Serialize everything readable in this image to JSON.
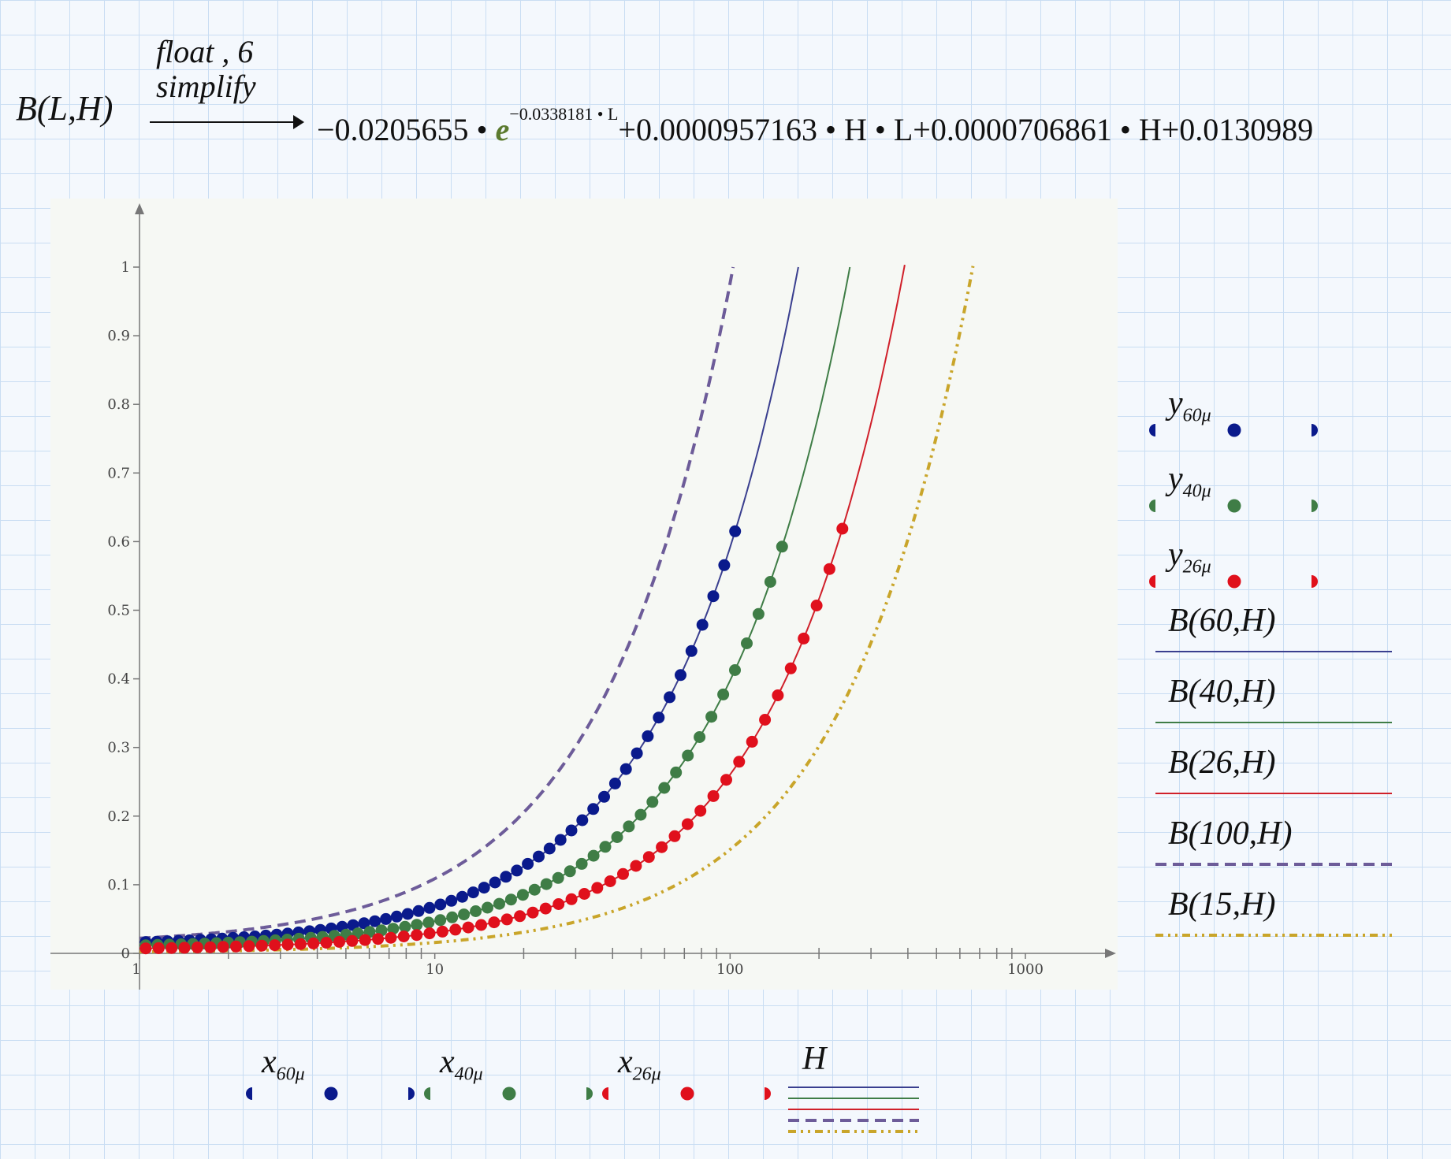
{
  "equation": {
    "lhs": "B(L,H)",
    "directive_1": "float , 6",
    "directive_2": "simplify",
    "rhs_parts": {
      "c1": "−0.0205655 • ",
      "e": "e",
      "exp": "−0.0338181 • L",
      "rest": "+0.0000957163 • H • L+0.0000706861 • H+0.0130989"
    }
  },
  "chart_data": {
    "type": "scatter",
    "title": "",
    "x_scale": "log",
    "xlim": [
      0.7,
      2000
    ],
    "ylim": [
      -0.1,
      1.1
    ],
    "x_ticks": [
      1,
      10,
      100,
      1000
    ],
    "x_tick_labels": [
      "1",
      "10",
      "100",
      "1000"
    ],
    "y_ticks": [
      0,
      0.1,
      0.2,
      0.3,
      0.4,
      0.5,
      0.6,
      0.7,
      0.8,
      0.9,
      1
    ],
    "y_tick_labels": [
      "0",
      "0.1",
      "0.2",
      "0.3",
      "0.4",
      "0.5",
      "0.6",
      "0.7",
      "0.8",
      "0.9",
      "1"
    ],
    "formula": {
      "a": -0.0205655,
      "k": -0.0338181,
      "b": 9.57163e-05,
      "c": 7.06861e-05,
      "d": 0.0130989
    },
    "scatter_series": [
      {
        "label": "y60μ",
        "x_label": "x60μ",
        "L": 60,
        "color": "#0a1a8c",
        "h_range": [
          1.05,
          104
        ],
        "n": 55
      },
      {
        "label": "y40μ",
        "x_label": "x40μ",
        "L": 40,
        "color": "#3f7d46",
        "h_range": [
          1.05,
          150
        ],
        "n": 55
      },
      {
        "label": "y26μ",
        "x_label": "x26μ",
        "L": 26,
        "color": "#e0101c",
        "h_range": [
          1.05,
          240
        ],
        "n": 55
      }
    ],
    "line_series": [
      {
        "label": "B(60,H)",
        "L": 60,
        "color": "#3a3f8f",
        "dash": "",
        "width": 2
      },
      {
        "label": "B(40,H)",
        "L": 40,
        "color": "#3f7d46",
        "dash": "",
        "width": 2
      },
      {
        "label": "B(26,H)",
        "L": 26,
        "color": "#d0202a",
        "dash": "",
        "width": 2
      },
      {
        "label": "B(100,H)",
        "L": 100,
        "color": "#6d5c99",
        "dash": "14 8",
        "width": 4
      },
      {
        "label": "B(15,H)",
        "L": 15,
        "color": "#c9a52a",
        "dash": "10 6 3 6 3 6",
        "width": 4
      }
    ],
    "x_axis_variable": "H"
  }
}
